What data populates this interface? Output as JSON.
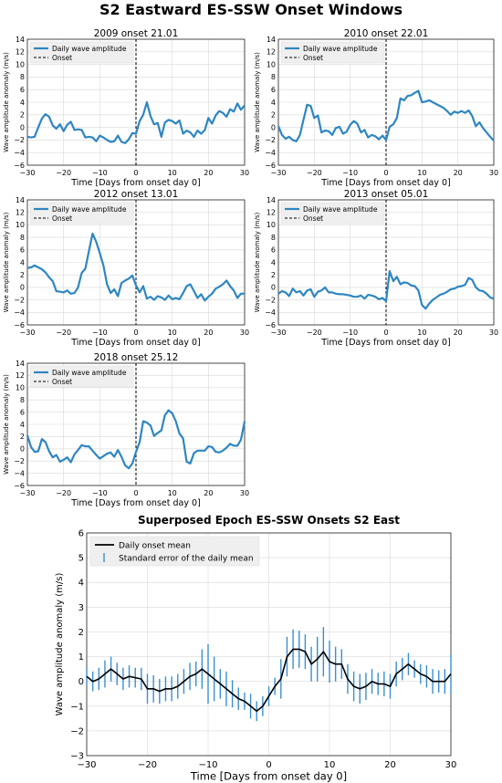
{
  "main_title": "S2 Eastward ES-SSW Onset Windows",
  "colors": {
    "wave": "#2e86c1",
    "mean": "#000000",
    "error": "#3b8fd0",
    "grid": "#d9d9d9",
    "legend_bg": "#efefef"
  },
  "chart_data": [
    {
      "type": "line",
      "title": "2009 onset 21.01",
      "xlabel": "Time [Days from onset day 0]",
      "ylabel": "Wave amplitude anomaly (m/s)",
      "xlim": [
        -30,
        30
      ],
      "ylim": [
        -6,
        14
      ],
      "xticks": [
        -30,
        -20,
        -10,
        0,
        10,
        20,
        30
      ],
      "yticks": [
        -6,
        -4,
        -2,
        0,
        2,
        4,
        6,
        8,
        10,
        12,
        14
      ],
      "grid": true,
      "legend": "upper-left",
      "legend_entries": [
        "Daily wave amplitude",
        "Onset"
      ],
      "onset_x": 0,
      "series": [
        {
          "name": "Daily wave amplitude",
          "x": [
            -30,
            -29,
            -28,
            -27,
            -26,
            -25,
            -24,
            -23,
            -22,
            -21,
            -20,
            -19,
            -18,
            -17,
            -16,
            -15,
            -14,
            -13,
            -12,
            -11,
            -10,
            -9,
            -8,
            -7,
            -6,
            -5,
            -4,
            -3,
            -2,
            -1,
            0,
            1,
            2,
            3,
            4,
            5,
            6,
            7,
            8,
            9,
            10,
            11,
            12,
            13,
            14,
            15,
            16,
            17,
            18,
            19,
            20,
            21,
            22,
            23,
            24,
            25,
            26,
            27,
            28,
            29,
            30
          ],
          "y": [
            -1.5,
            -1.6,
            -1.5,
            0,
            1.4,
            2.1,
            1.7,
            0.3,
            -0.2,
            0.5,
            -0.6,
            0.4,
            0.9,
            -0.4,
            -0.3,
            -0.4,
            -1.6,
            -1.5,
            -1.6,
            -2.2,
            -1.3,
            -1.6,
            -2,
            -2.3,
            -2.2,
            -1.3,
            -2.3,
            -2.5,
            -1.9,
            -0.9,
            -1,
            1,
            2,
            4,
            1.8,
            0.5,
            0.7,
            -1.5,
            0.8,
            1.2,
            1,
            0.6,
            1.1,
            -1,
            -0.5,
            -0.8,
            -1.5,
            -0.5,
            -1,
            -0.4,
            1.5,
            0.6,
            1.9,
            2.6,
            2.3,
            1.7,
            2.9,
            2.5,
            3.8,
            2.8,
            3.5
          ]
        }
      ]
    },
    {
      "type": "line",
      "title": "2010 onset 22.01",
      "xlabel": "Time [Days from onset day 0]",
      "ylabel": "Wave amplitude anomaly (m/s)",
      "xlim": [
        -30,
        30
      ],
      "ylim": [
        -6,
        14
      ],
      "xticks": [
        -30,
        -20,
        -10,
        0,
        10,
        20,
        30
      ],
      "yticks": [
        -6,
        -4,
        -2,
        0,
        2,
        4,
        6,
        8,
        10,
        12,
        14
      ],
      "grid": true,
      "legend": "upper-left",
      "legend_entries": [
        "Daily wave amplitude",
        "Onset"
      ],
      "onset_x": 0,
      "series": [
        {
          "name": "Daily wave amplitude",
          "x": [
            -30,
            -29,
            -28,
            -27,
            -26,
            -25,
            -24,
            -23,
            -22,
            -21,
            -20,
            -19,
            -18,
            -17,
            -16,
            -15,
            -14,
            -13,
            -12,
            -11,
            -10,
            -9,
            -8,
            -7,
            -6,
            -5,
            -4,
            -3,
            -2,
            -1,
            0,
            1,
            2,
            3,
            4,
            5,
            6,
            7,
            8,
            9,
            10,
            11,
            12,
            13,
            14,
            15,
            16,
            17,
            18,
            19,
            20,
            21,
            22,
            23,
            24,
            25,
            26,
            27,
            28,
            29,
            30
          ],
          "y": [
            0.2,
            -1.2,
            -1.8,
            -1.5,
            -2,
            -2.2,
            -1.2,
            1.2,
            3.6,
            3.4,
            1.5,
            1.9,
            -0.8,
            -0.5,
            -0.6,
            -1.2,
            -0.1,
            0.1,
            -1,
            -0.7,
            0.4,
            1,
            0.6,
            -0.8,
            -0.4,
            -1.6,
            -1.2,
            -1.4,
            -1.9,
            -1.3,
            -2,
            0.1,
            0.5,
            1.5,
            4.6,
            4.3,
            5,
            5.1,
            5.5,
            5.8,
            4,
            4.1,
            4.3,
            4,
            3.7,
            3.4,
            3.1,
            2.6,
            2,
            2.5,
            2.3,
            2.6,
            2.3,
            2.7,
            1.8,
            0.2,
            0.8,
            -0.1,
            -0.8,
            -1.5,
            -2.1
          ]
        }
      ]
    },
    {
      "type": "line",
      "title": "2012 onset 13.01",
      "xlabel": "Time [Days from onset day 0]",
      "ylabel": "Wave amplitude anomaly (m/s)",
      "xlim": [
        -30,
        30
      ],
      "ylim": [
        -6,
        14
      ],
      "xticks": [
        -30,
        -20,
        -10,
        0,
        10,
        20,
        30
      ],
      "yticks": [
        -6,
        -4,
        -2,
        0,
        2,
        4,
        6,
        8,
        10,
        12,
        14
      ],
      "grid": true,
      "legend": "upper-left",
      "legend_entries": [
        "Daily wave amplitude",
        "Onset"
      ],
      "onset_x": 0,
      "series": [
        {
          "name": "Daily wave amplitude",
          "x": [
            -30,
            -29,
            -28,
            -27,
            -26,
            -25,
            -24,
            -23,
            -22,
            -21,
            -20,
            -19,
            -18,
            -17,
            -16,
            -15,
            -14,
            -13,
            -12,
            -11,
            -10,
            -9,
            -8,
            -7,
            -6,
            -5,
            -4,
            -3,
            -2,
            -1,
            0,
            1,
            2,
            3,
            4,
            5,
            6,
            7,
            8,
            9,
            10,
            11,
            12,
            13,
            14,
            15,
            16,
            17,
            18,
            19,
            20,
            21,
            22,
            23,
            24,
            25,
            26,
            27,
            28,
            29,
            30
          ],
          "y": [
            3.1,
            3.2,
            3.5,
            3.2,
            2.9,
            2.4,
            1.6,
            1,
            -0.6,
            -0.7,
            -0.8,
            -0.5,
            -1,
            -0.9,
            0,
            2.3,
            3,
            5.8,
            8.6,
            7.3,
            5.5,
            3.5,
            0.5,
            -0.9,
            -0.3,
            -1.4,
            0.7,
            1.1,
            1.4,
            1.9,
            0.3,
            -0.8,
            0.2,
            -1.8,
            -1.5,
            -2,
            -1.4,
            -1.6,
            -2,
            -1.3,
            -1.9,
            -1.7,
            -1.9,
            -0.9,
            0.2,
            0.5,
            -0.6,
            -1.7,
            -1.1,
            -2.1,
            -1.5,
            -1,
            -0.2,
            0.1,
            0.5,
            1.1,
            0.2,
            -0.5,
            -1.7,
            -1,
            -1
          ]
        }
      ]
    },
    {
      "type": "line",
      "title": "2013 onset 05.01",
      "xlabel": "Time [Days from onset day 0]",
      "ylabel": "Wave amplitude anomaly (m/s)",
      "xlim": [
        -30,
        30
      ],
      "ylim": [
        -6,
        14
      ],
      "xticks": [
        -30,
        -20,
        -10,
        0,
        10,
        20,
        30
      ],
      "yticks": [
        -6,
        -4,
        -2,
        0,
        2,
        4,
        6,
        8,
        10,
        12,
        14
      ],
      "grid": true,
      "legend": "upper-left",
      "legend_entries": [
        "Daily wave amplitude",
        "Onset"
      ],
      "onset_x": 0,
      "series": [
        {
          "name": "Daily wave amplitude",
          "x": [
            -30,
            -29,
            -28,
            -27,
            -26,
            -25,
            -24,
            -23,
            -22,
            -21,
            -20,
            -19,
            -18,
            -17,
            -16,
            -15,
            -14,
            -13,
            -12,
            -11,
            -10,
            -9,
            -8,
            -7,
            -6,
            -5,
            -4,
            -3,
            -2,
            -1,
            0,
            1,
            2,
            3,
            4,
            5,
            6,
            7,
            8,
            9,
            10,
            11,
            12,
            13,
            14,
            15,
            16,
            17,
            18,
            19,
            20,
            21,
            22,
            23,
            24,
            25,
            26,
            27,
            28,
            29,
            30
          ],
          "y": [
            -1,
            -0.6,
            -0.8,
            -1.4,
            -0.2,
            -0.8,
            -0.6,
            -1.3,
            -0.5,
            -0.3,
            -1.5,
            -0.7,
            -0.5,
            0,
            -0.8,
            -0.8,
            -1,
            -1.1,
            -1.1,
            -1.2,
            -1.3,
            -1.5,
            -1.5,
            -1.3,
            -1.8,
            -1.2,
            -1.3,
            -1.5,
            -1.9,
            -1.7,
            -2.2,
            2.6,
            1,
            1.7,
            0.5,
            0.8,
            0.7,
            0.3,
            0.2,
            -0.5,
            -2.8,
            -3.4,
            -2.6,
            -2,
            -1.6,
            -1.2,
            -1,
            -0.7,
            -0.3,
            -0.2,
            0.1,
            0.2,
            0.4,
            1.5,
            1.2,
            0,
            -0.5,
            -0.6,
            -1,
            -1.6,
            -1.8
          ]
        }
      ]
    },
    {
      "type": "line",
      "title": "2018 onset 25.12",
      "xlabel": "Time [Days from onset day 0]",
      "ylabel": "Wave amplitude anomaly (m/s)",
      "xlim": [
        -30,
        30
      ],
      "ylim": [
        -6,
        14
      ],
      "xticks": [
        -30,
        -20,
        -10,
        0,
        10,
        20,
        30
      ],
      "yticks": [
        -6,
        -4,
        -2,
        0,
        2,
        4,
        6,
        8,
        10,
        12,
        14
      ],
      "grid": true,
      "legend": "upper-left",
      "legend_entries": [
        "Daily wave amplitude",
        "Onset"
      ],
      "onset_x": 0,
      "series": [
        {
          "name": "Daily wave amplitude",
          "x": [
            -30,
            -29,
            -28,
            -27,
            -26,
            -25,
            -24,
            -23,
            -22,
            -21,
            -20,
            -19,
            -18,
            -17,
            -16,
            -15,
            -14,
            -13,
            -12,
            -11,
            -10,
            -9,
            -8,
            -7,
            -6,
            -5,
            -4,
            -3,
            -2,
            -1,
            0,
            1,
            2,
            3,
            4,
            5,
            6,
            7,
            8,
            9,
            10,
            11,
            12,
            13,
            14,
            15,
            16,
            17,
            18,
            19,
            20,
            21,
            22,
            23,
            24,
            25,
            26,
            27,
            28,
            29,
            30
          ],
          "y": [
            2.2,
            0.3,
            -0.5,
            -0.4,
            1.6,
            1.1,
            -0.4,
            -1.4,
            -1,
            -2.1,
            -1.8,
            -1.4,
            -2.2,
            -0.9,
            -0.2,
            0.6,
            0.4,
            0.4,
            -0.3,
            -1,
            -1.6,
            -1.2,
            -0.8,
            -0.6,
            -1.3,
            -0.2,
            -1.3,
            -2.7,
            -3.2,
            -2.4,
            -0.5,
            1.1,
            4.5,
            4.3,
            3.8,
            2.1,
            2.6,
            3,
            5.5,
            6.3,
            5.8,
            4.5,
            2.5,
            1.7,
            -2.1,
            -2.4,
            -0.7,
            -0.3,
            -0.3,
            -0.3,
            0.4,
            0.3,
            -0.5,
            -0.6,
            -0.3,
            0.2,
            0.8,
            0.5,
            0.5,
            1.5,
            4.5
          ]
        }
      ]
    },
    {
      "type": "line",
      "title": "Superposed Epoch ES-SSW Onsets S2 East",
      "xlabel": "Time [Days from onset day 0]",
      "ylabel": "Wave amplitude anomaly (m/s)",
      "xlim": [
        -30,
        30
      ],
      "ylim": [
        -3,
        6
      ],
      "xticks": [
        -30,
        -20,
        -10,
        0,
        10,
        20,
        30
      ],
      "yticks": [
        -3,
        -2,
        -1,
        0,
        1,
        2,
        3,
        4,
        5,
        6
      ],
      "grid": true,
      "legend": "upper-left",
      "legend_entries": [
        "Daily onset mean",
        "Standard error of the daily mean"
      ],
      "series": [
        {
          "name": "Daily onset mean",
          "x": [
            -30,
            -29,
            -28,
            -27,
            -26,
            -25,
            -24,
            -23,
            -22,
            -21,
            -20,
            -19,
            -18,
            -17,
            -16,
            -15,
            -14,
            -13,
            -12,
            -11,
            -10,
            -9,
            -8,
            -7,
            -6,
            -5,
            -4,
            -3,
            -2,
            -1,
            0,
            1,
            2,
            3,
            4,
            5,
            6,
            7,
            8,
            9,
            10,
            11,
            12,
            13,
            14,
            15,
            16,
            17,
            18,
            19,
            20,
            21,
            22,
            23,
            24,
            25,
            26,
            27,
            28,
            29,
            30
          ],
          "y": [
            0.2,
            0,
            0.1,
            0.3,
            0.5,
            0.3,
            0.1,
            0.2,
            0.15,
            0.1,
            -0.3,
            -0.3,
            -0.4,
            -0.3,
            -0.3,
            -0.2,
            0,
            0.2,
            0.3,
            0.5,
            0.3,
            0.1,
            -0.1,
            -0.3,
            -0.5,
            -0.7,
            -0.8,
            -1,
            -1.2,
            -1,
            -0.6,
            -0.2,
            0.1,
            1,
            1.3,
            1.3,
            1.2,
            0.7,
            0.9,
            1.2,
            0.8,
            0.7,
            0.7,
            0.1,
            -0.2,
            -0.3,
            -0.2,
            0,
            -0.1,
            -0.1,
            -0.2,
            0.3,
            0.5,
            0.7,
            0.5,
            0.3,
            0.2,
            0,
            0,
            0,
            0.3
          ],
          "err": [
            0.35,
            0.4,
            0.45,
            0.55,
            0.5,
            0.45,
            0.45,
            0.45,
            0.4,
            0.45,
            0.6,
            0.55,
            0.5,
            0.5,
            0.5,
            0.5,
            0.5,
            0.55,
            0.5,
            0.8,
            1.2,
            0.9,
            0.6,
            0.7,
            0.55,
            0.45,
            0.35,
            0.5,
            0.4,
            0.4,
            0.4,
            0.35,
            0.8,
            0.8,
            0.8,
            0.75,
            0.7,
            0.7,
            0.9,
            1,
            0.85,
            0.7,
            0.6,
            0.6,
            0.6,
            0.6,
            0.55,
            0.5,
            0.45,
            0.5,
            0.5,
            0.5,
            0.45,
            0.45,
            0.35,
            0.4,
            0.45,
            0.5,
            0.45,
            0.5,
            0.8
          ]
        }
      ]
    }
  ]
}
